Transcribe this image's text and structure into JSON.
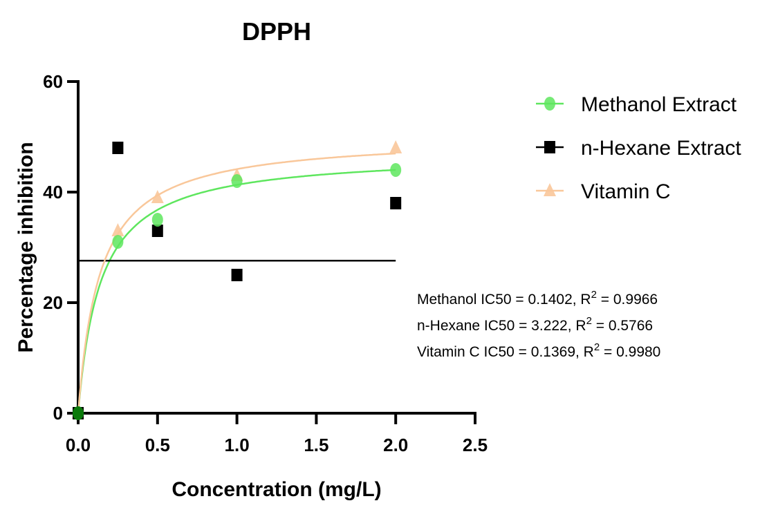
{
  "chart_data": {
    "type": "scatter",
    "title": "DPPH",
    "xlabel": "Concentration (mg/L)",
    "ylabel": "Percentage inhibition",
    "xlim": [
      0,
      2.5
    ],
    "ylim": [
      0,
      60
    ],
    "xticks": [
      "0.0",
      "0.5",
      "1.0",
      "1.5",
      "2.0",
      "2.5"
    ],
    "yticks": [
      "0",
      "20",
      "40",
      "60"
    ],
    "grid": false,
    "legend_position": "right",
    "series": [
      {
        "name": "Methanol Extract",
        "color": "#5ee65e",
        "marker": "circle",
        "x": [
          0,
          0.25,
          0.5,
          1.0,
          2.0
        ],
        "y": [
          0,
          31,
          35,
          42,
          44
        ],
        "fit": {
          "type": "hyperbolic",
          "IC50": 0.1402,
          "top": 47.1
        }
      },
      {
        "name": "n-Hexane Extract",
        "color": "#000000",
        "marker": "square",
        "x": [
          0,
          0.25,
          0.5,
          1.0,
          2.0
        ],
        "y": [
          0,
          48,
          33,
          25,
          38
        ],
        "fit": {
          "type": "horizontal",
          "value": 27.6,
          "x_range": [
            0,
            2.0
          ]
        }
      },
      {
        "name": "Vitamin C",
        "color": "#f9c79a",
        "marker": "triangle",
        "x": [
          0,
          0.25,
          0.5,
          1.0,
          2.0
        ],
        "y": [
          0,
          33,
          39,
          43,
          48
        ],
        "fit": {
          "type": "hyperbolic",
          "IC50": 0.1369,
          "top": 50.2
        }
      }
    ],
    "annotations": [
      {
        "prefix": "Methanol IC50 = 0.1402, R",
        "sup": "2",
        "suffix": " = 0.9966"
      },
      {
        "prefix": "n-Hexane IC50 = 3.222, R",
        "sup": "2",
        "suffix": " = 0.5766"
      },
      {
        "prefix": "Vitamin C IC50 = 0.1369, R",
        "sup": "2",
        "suffix": " = 0.9980"
      }
    ]
  }
}
